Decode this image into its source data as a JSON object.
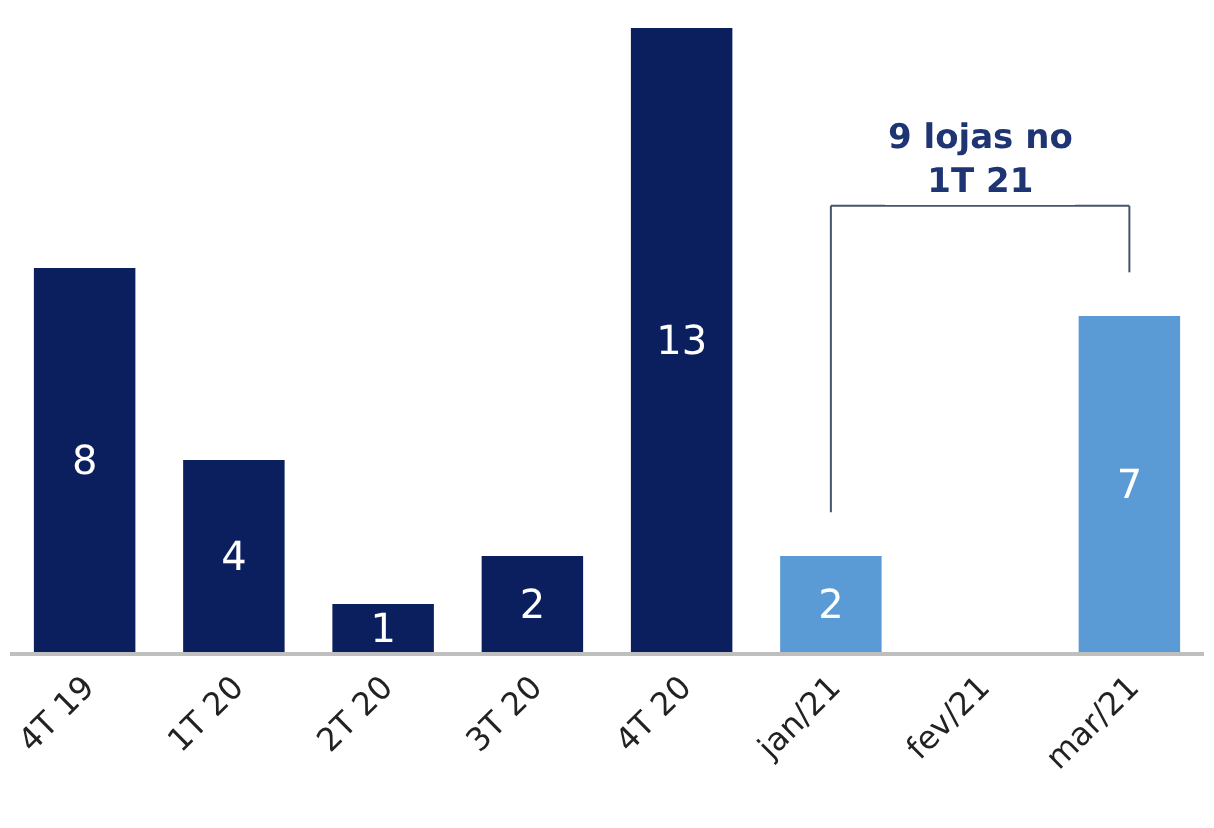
{
  "chart_data": {
    "type": "bar",
    "categories": [
      "4T 19",
      "1T 20",
      "2T 20",
      "3T 20",
      "4T 20",
      "jan/21",
      "fev/21",
      "mar/21"
    ],
    "values": [
      8,
      4,
      1,
      2,
      13,
      2,
      null,
      7
    ],
    "colors": [
      "#0b1f5e",
      "#0b1f5e",
      "#0b1f5e",
      "#0b1f5e",
      "#0b1f5e",
      "#5b9bd5",
      "#5b9bd5",
      "#5b9bd5"
    ],
    "data_labels": true,
    "ylim": [
      0,
      13
    ],
    "legend": false,
    "annotations": [
      "9 lojas no\n1T 21"
    ]
  }
}
